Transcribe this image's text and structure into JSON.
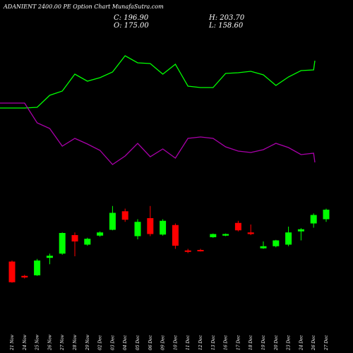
{
  "header": {
    "title": "ADANIENT 2400.00  PE Option  Chart MunafaSutra.com"
  },
  "ohlc": {
    "close_label": "C:",
    "close": "196.90",
    "high_label": "H:",
    "high": "203.70",
    "open_label": "O:",
    "open": "175.00",
    "low_label": "L:",
    "low": "158.60"
  },
  "colors": {
    "bg": "#000000",
    "up": "#00ff00",
    "down": "#ff0000",
    "green_line": "#00ff00",
    "magenta_line": "#aa00aa",
    "text": "#ffffff"
  },
  "chart_data": {
    "type": "candlestick",
    "title": "ADANIENT 2400.00  PE Option  Chart MunafaSutra.com",
    "x": [
      "21 Nov",
      "24 Nov",
      "25 Nov",
      "26 Nov",
      "27 Nov",
      "28 Nov",
      "29 Nov",
      "02 Dec",
      "03 Dec",
      "04 Dec",
      "05 Dec",
      "06 Dec",
      "09 Dec",
      "10 Dec",
      "11 Dec",
      "12 Dec",
      "13 Dec",
      "16 Dec",
      "17 Dec",
      "18 Dec",
      "19 Dec",
      "20 Dec",
      "23 Dec",
      "24 Dec",
      "26 Dec",
      "27 Dec"
    ],
    "ohlc_series": [
      {
        "o": 150,
        "h": 148,
        "l": 190,
        "c": 189
      },
      {
        "o": 177,
        "h": 175,
        "l": 182,
        "c": 180
      },
      {
        "o": 176,
        "h": 145,
        "l": 177,
        "c": 148
      },
      {
        "o": 143,
        "h": 135,
        "l": 155,
        "c": 139
      },
      {
        "o": 135,
        "h": 95,
        "l": 137,
        "c": 96
      },
      {
        "o": 100,
        "h": 95,
        "l": 140,
        "c": 112
      },
      {
        "o": 118,
        "h": 105,
        "l": 120,
        "c": 107
      },
      {
        "o": 101,
        "h": 93,
        "l": 103,
        "c": 95
      },
      {
        "o": 90,
        "h": 45,
        "l": 91,
        "c": 58
      },
      {
        "o": 55,
        "h": 50,
        "l": 75,
        "c": 71
      },
      {
        "o": 102,
        "h": 70,
        "l": 108,
        "c": 75
      },
      {
        "o": 68,
        "h": 45,
        "l": 102,
        "c": 98
      },
      {
        "o": 99,
        "h": 70,
        "l": 101,
        "c": 73
      },
      {
        "o": 81,
        "h": 78,
        "l": 126,
        "c": 120
      },
      {
        "o": 129,
        "h": 126,
        "l": 134,
        "c": 131
      },
      {
        "o": 128,
        "h": 126,
        "l": 131,
        "c": 130
      },
      {
        "o": 104,
        "h": 97,
        "l": 105,
        "c": 98
      },
      {
        "o": 101,
        "h": 97,
        "l": 102,
        "c": 98
      },
      {
        "o": 77,
        "h": 73,
        "l": 93,
        "c": 91
      },
      {
        "o": 95,
        "h": 80,
        "l": 100,
        "c": 98
      },
      {
        "o": 125,
        "h": 112,
        "l": 126,
        "c": 121
      },
      {
        "o": 121,
        "h": 109,
        "l": 123,
        "c": 110
      },
      {
        "o": 118,
        "h": 84,
        "l": 121,
        "c": 95
      },
      {
        "o": 93,
        "h": 87,
        "l": 110,
        "c": 89
      },
      {
        "o": 78,
        "h": 59,
        "l": 86,
        "c": 62
      },
      {
        "o": 70,
        "h": 50,
        "l": 75,
        "c": 52
      }
    ],
    "lines": [
      {
        "name": "",
        "color": "#00ff00",
        "values": [
          153,
          153,
          152,
          135,
          129,
          105,
          115,
          110,
          102,
          79,
          89,
          90,
          105,
          91,
          122,
          124,
          124,
          104,
          103,
          101,
          106,
          121,
          109,
          100,
          99,
          86
        ]
      },
      {
        "name": "",
        "color": "#aa00aa",
        "values": [
          146,
          146,
          174,
          182,
          207,
          196,
          204,
          213,
          233,
          221,
          203,
          222,
          211,
          224,
          196,
          194,
          196,
          208,
          214,
          216,
          212,
          203,
          209,
          219,
          217,
          230
        ]
      }
    ],
    "xlabel": "",
    "ylabel": "",
    "grid": false,
    "legend": "none"
  }
}
